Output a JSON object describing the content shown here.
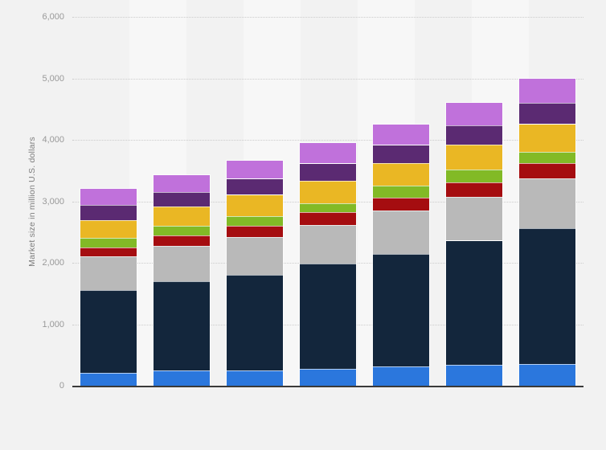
{
  "chart": {
    "y_axis_title": "Market size in million U.S. dollars"
  },
  "chart_data": {
    "type": "bar",
    "stacked": true,
    "title": "",
    "xlabel": "",
    "ylabel": "Market size in million U.S. dollars",
    "ylim": [
      0,
      6000
    ],
    "grid": "horizontal-dotted",
    "legend_position": "none",
    "x_tick_labels_visible": false,
    "yticks": [
      0,
      1000,
      2000,
      3000,
      4000,
      5000,
      6000
    ],
    "ytick_labels": [
      "0",
      "1,000",
      "2,000",
      "3,000",
      "4,000",
      "5,000",
      "6,000"
    ],
    "categories": [
      "",
      "",
      "",
      "",
      "",
      "",
      ""
    ],
    "series": [
      {
        "name": "segment-1-blue",
        "color": "#2b77dd",
        "values": [
          210,
          245,
          245,
          270,
          320,
          335,
          350
        ]
      },
      {
        "name": "segment-2-dark-navy",
        "color": "#13263c",
        "values": [
          1345,
          1455,
          1565,
          1715,
          1830,
          2025,
          2215
        ]
      },
      {
        "name": "segment-3-gray",
        "color": "#b9b9b9",
        "values": [
          550,
          575,
          610,
          630,
          700,
          710,
          805
        ]
      },
      {
        "name": "segment-4-dark-red",
        "color": "#a50d10",
        "values": [
          150,
          175,
          180,
          205,
          205,
          235,
          255
        ]
      },
      {
        "name": "segment-5-green",
        "color": "#82ba26",
        "values": [
          150,
          155,
          155,
          150,
          195,
          210,
          180
        ]
      },
      {
        "name": "segment-6-yellow",
        "color": "#eab724",
        "values": [
          285,
          315,
          350,
          365,
          375,
          410,
          450
        ]
      },
      {
        "name": "segment-7-purple",
        "color": "#5b2a72",
        "values": [
          250,
          225,
          260,
          280,
          290,
          305,
          345
        ]
      },
      {
        "name": "segment-8-orchid",
        "color": "#c071db",
        "values": [
          260,
          285,
          300,
          330,
          335,
          370,
          400
        ]
      }
    ],
    "stack_totals": [
      3200,
      3430,
      3665,
      3945,
      4250,
      4600,
      5000
    ]
  },
  "layout_colors": {
    "background": "#f2f2f2",
    "stripe_light": "#f7f7f7",
    "gridline": "#cccccc",
    "axis_line": "#3a3a3a",
    "tick_label": "#999999",
    "axis_title": "#7d7d7d"
  }
}
